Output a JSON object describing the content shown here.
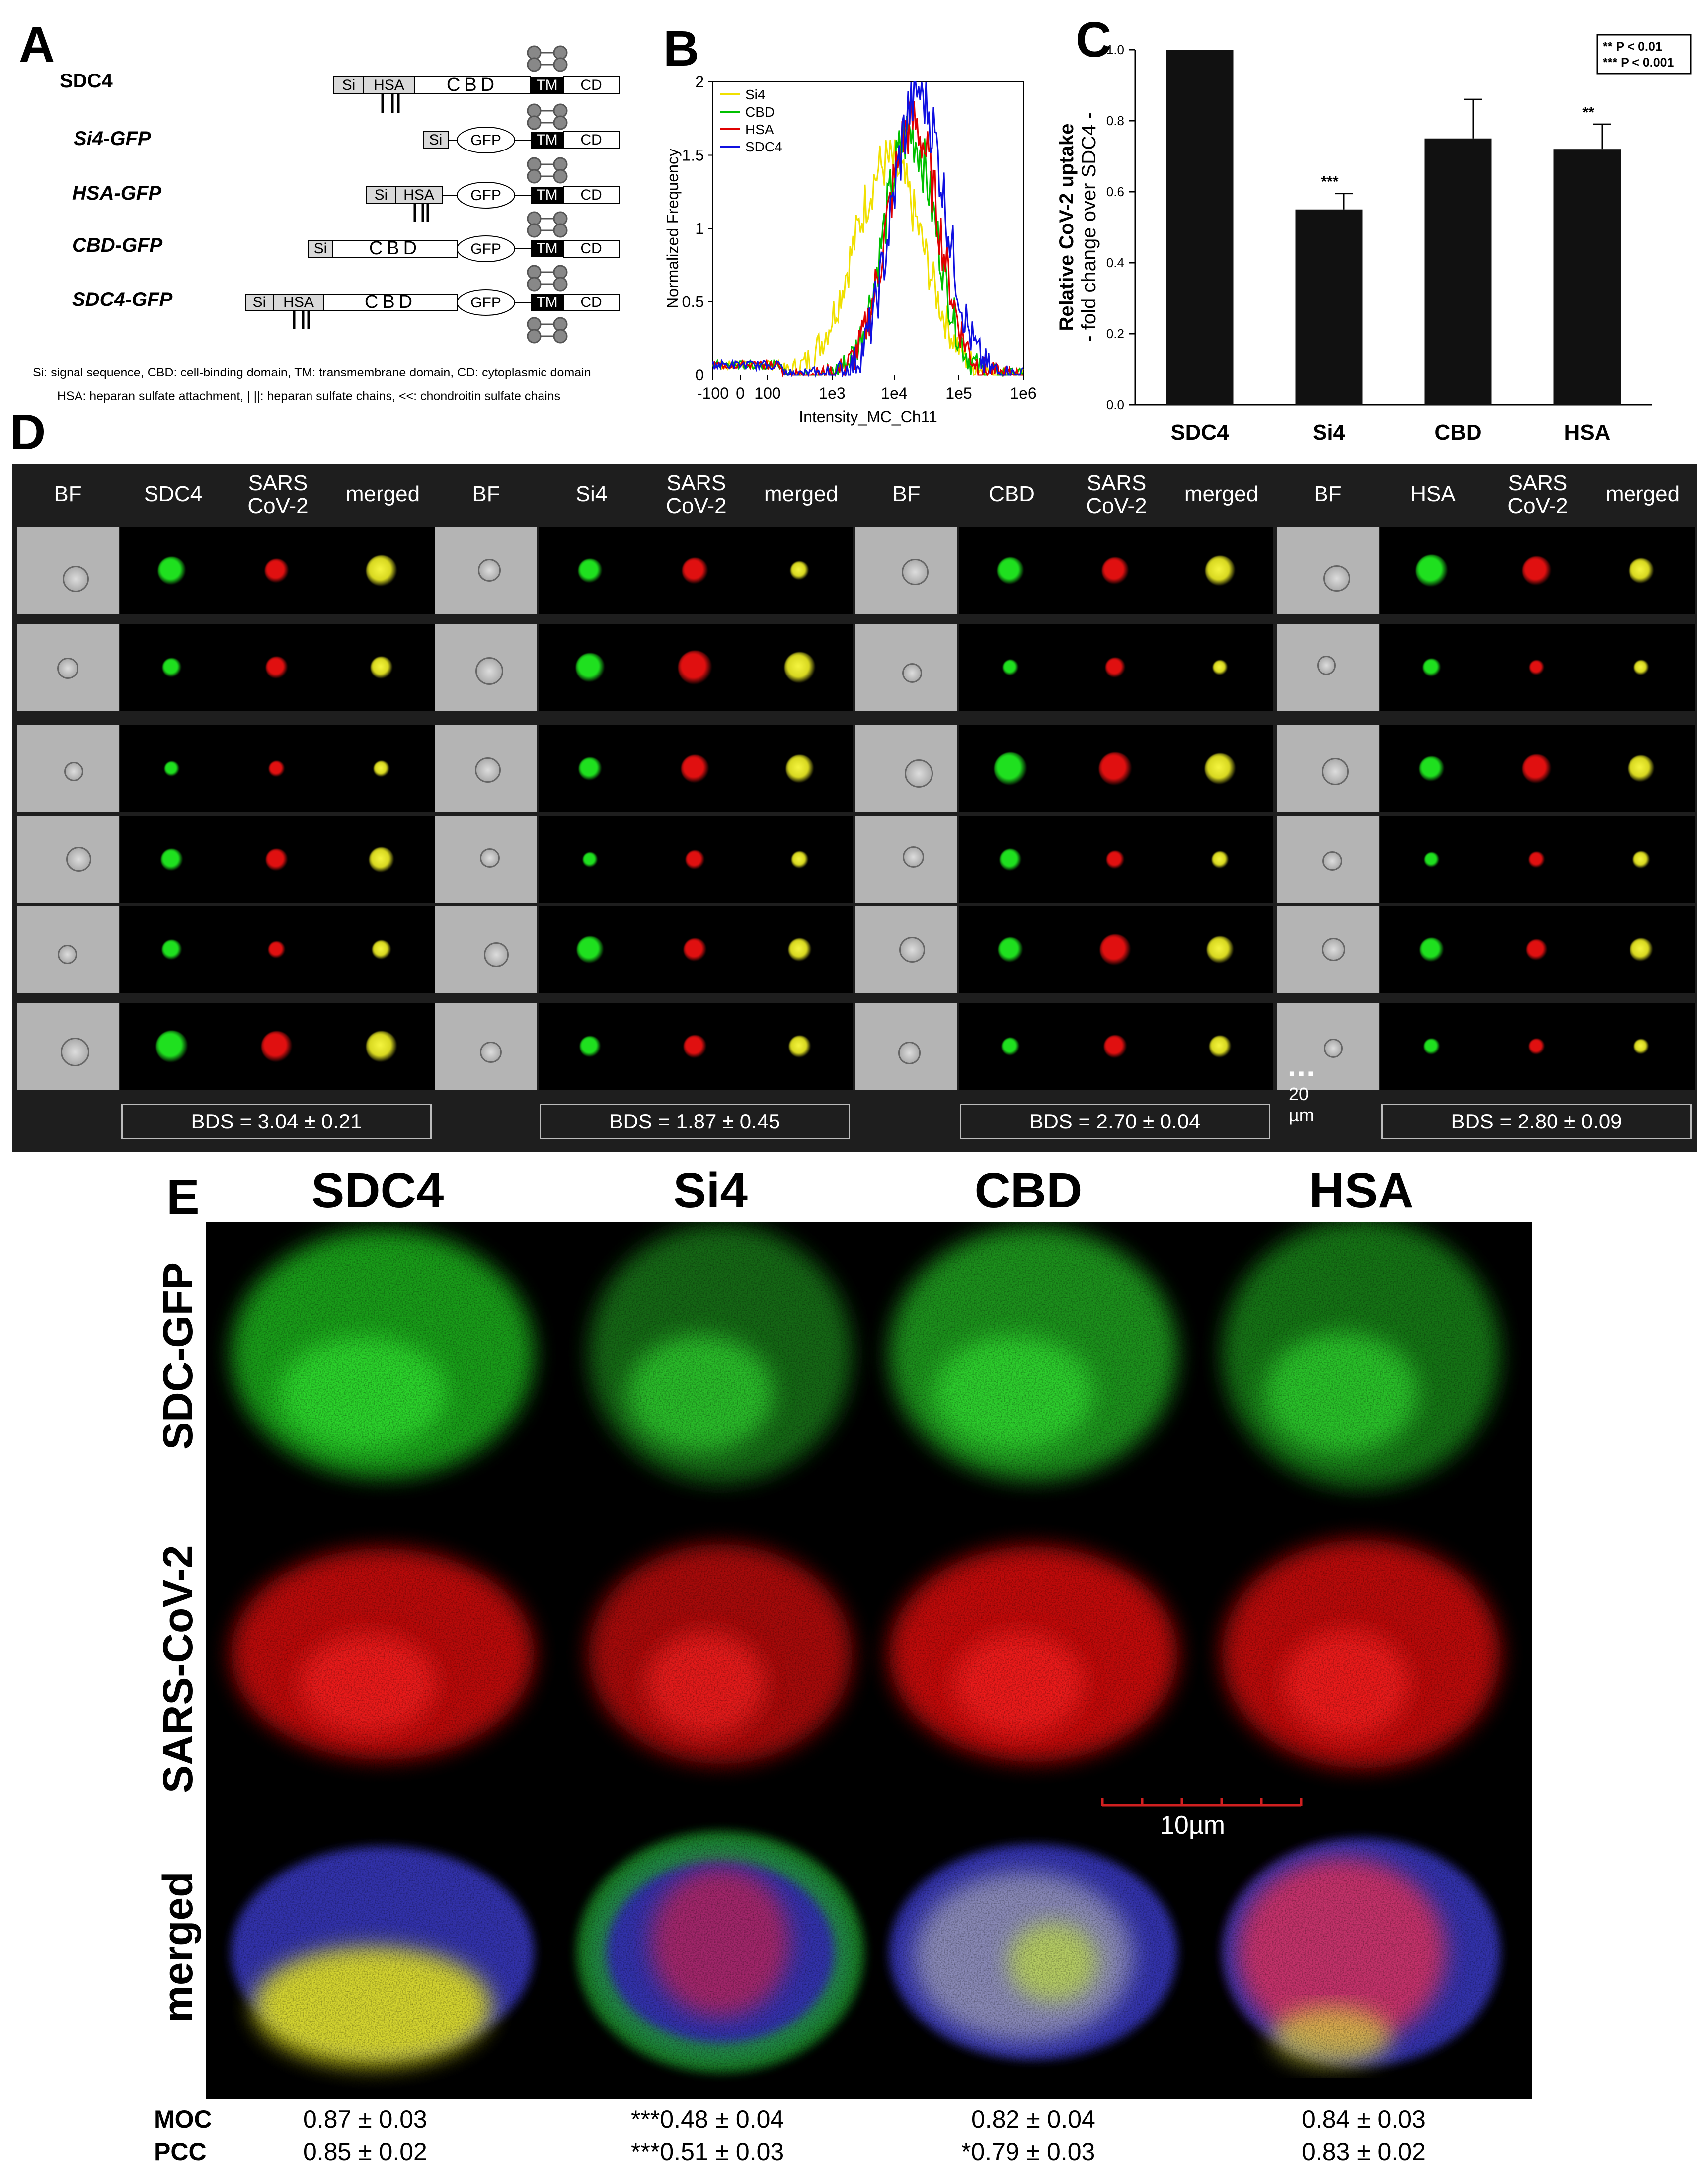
{
  "panel_a": {
    "label": "A",
    "rows": [
      {
        "name": "SDC4",
        "domains": [
          "Si",
          "HSA",
          "CBD",
          "TM",
          "CD"
        ]
      },
      {
        "name": "Si4-GFP",
        "domains": [
          "Si",
          "GFP",
          "TM",
          "CD"
        ]
      },
      {
        "name": "HSA-GFP",
        "domains": [
          "Si",
          "HSA",
          "GFP",
          "TM",
          "CD"
        ]
      },
      {
        "name": "CBD-GFP",
        "domains": [
          "Si",
          "CBD",
          "GFP",
          "TM",
          "CD"
        ]
      },
      {
        "name": "SDC4-GFP",
        "domains": [
          "Si",
          "HSA",
          "CBD",
          "GFP",
          "TM",
          "CD"
        ]
      }
    ],
    "legend_line1": "Si: signal sequence,  CBD: cell-binding domain,  TM: transmembrane domain,  CD: cytoplasmic domain",
    "legend_line2": "HSA: heparan sulfate attachment,  | ||: heparan sulfate chains,  <<: chondroitin sulfate chains"
  },
  "panel_b": {
    "label": "B",
    "chart_data": {
      "type": "line",
      "xlabel": "Intensity_MC_Ch11",
      "ylabel": "Normalized Frequency",
      "xticks": [
        "-100",
        "0",
        "100",
        "1e3",
        "1e4",
        "1e5",
        "1e6"
      ],
      "yticks": [
        "0",
        "0.5",
        "1",
        "1.5",
        "2"
      ],
      "ylim": [
        0,
        2
      ],
      "x_scale": "logicle",
      "legend_position": "top-left",
      "series": [
        {
          "name": "Si4",
          "color": "#f0e000",
          "peak_x": 8000,
          "peak_y": 1.45
        },
        {
          "name": "CBD",
          "color": "#00c000",
          "peak_x": 18000,
          "peak_y": 1.65
        },
        {
          "name": "HSA",
          "color": "#e00000",
          "peak_x": 20000,
          "peak_y": 1.72
        },
        {
          "name": "SDC4",
          "color": "#1010e0",
          "peak_x": 25000,
          "peak_y": 1.95
        }
      ]
    }
  },
  "panel_c": {
    "label": "C",
    "legend_line1": "** P < 0.01",
    "legend_line2": "*** P < 0.001",
    "chart_data": {
      "type": "bar",
      "categories": [
        "SDC4",
        "Si4",
        "CBD",
        "HSA"
      ],
      "values": [
        1.0,
        0.55,
        0.75,
        0.72
      ],
      "errors": [
        0,
        0.045,
        0.11,
        0.07
      ],
      "significance": [
        "",
        "***",
        "",
        "**"
      ],
      "ylabel_line1": "Relative CoV-2 uptake",
      "ylabel_line2": "- fold change over SDC4 -",
      "yticks": [
        "0.0",
        "0.2",
        "0.4",
        "0.6",
        "0.8",
        "1.0"
      ],
      "ylim": [
        0,
        1.0
      ]
    }
  },
  "panel_d": {
    "label": "D",
    "groups": [
      {
        "h1": "BF",
        "h2": "SDC4",
        "h3": "SARS CoV-2",
        "h4": "merged",
        "bds": "BDS = 3.04 ± 0.21"
      },
      {
        "h1": "BF",
        "h2": "Si4",
        "h3": "SARS CoV-2",
        "h4": "merged",
        "bds": "BDS = 1.87 ± 0.45"
      },
      {
        "h1": "BF",
        "h2": "CBD",
        "h3": "SARS CoV-2",
        "h4": "merged",
        "bds": "BDS = 2.70 ± 0.04"
      },
      {
        "h1": "BF",
        "h2": "HSA",
        "h3": "SARS CoV-2",
        "h4": "merged",
        "bds": "BDS = 2.80 ± 0.09"
      }
    ],
    "scalebar": "20 µm"
  },
  "panel_e": {
    "label": "E",
    "columns": [
      "SDC4",
      "Si4",
      "CBD",
      "HSA"
    ],
    "rows": [
      "SDC-GFP",
      "SARS-CoV-2",
      "merged"
    ],
    "scalebar": "10µm",
    "moc_label": "MOC",
    "pcc_label": "PCC",
    "moc": [
      "0.87 ± 0.03",
      "***0.48 ± 0.04",
      "0.82 ± 0.04",
      "0.84 ± 0.03"
    ],
    "pcc": [
      "0.85 ± 0.02",
      "***0.51 ± 0.03",
      "*0.79 ± 0.03",
      "0.83 ± 0.02"
    ]
  }
}
